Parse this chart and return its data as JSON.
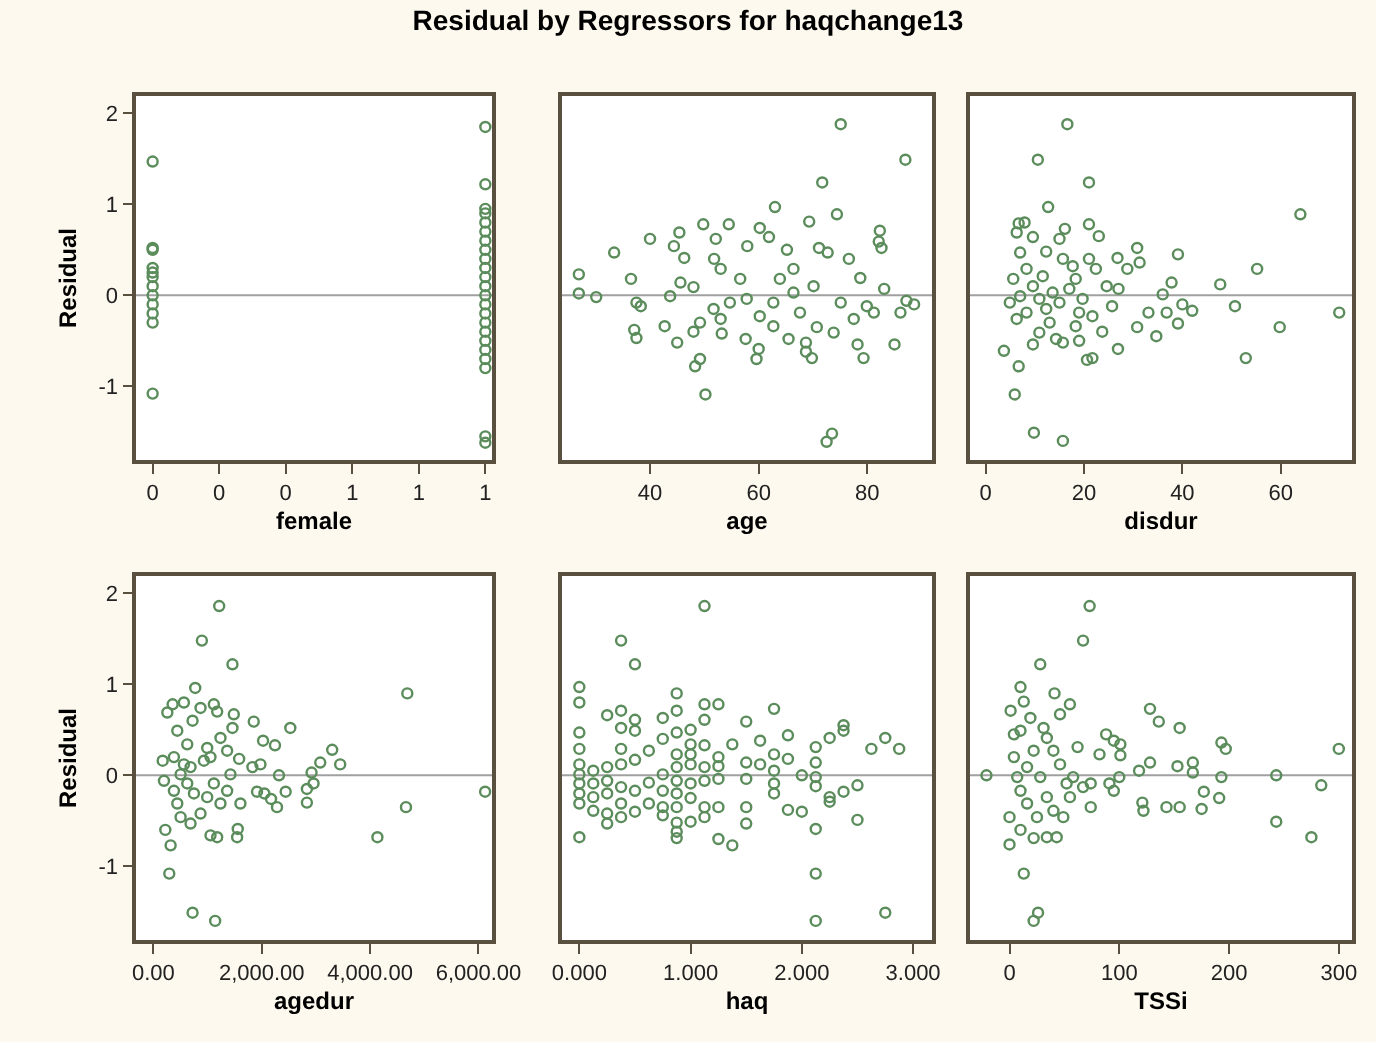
{
  "chart_data": [
    {
      "type": "scatter",
      "title": "Residual by Regressors for haqchange13",
      "xlabel": "female",
      "ylabel": "Residual",
      "color": "#5b8c5b",
      "marker": "circle",
      "grid": false,
      "xlim": [
        -0.05,
        1.02
      ],
      "xticks": [
        0,
        {
          "value": 0.2,
          "label": "0"
        },
        {
          "value": 0.4,
          "label": "0"
        },
        {
          "value": 0.6,
          "label": "1"
        },
        {
          "value": 0.8,
          "label": "1"
        },
        1
      ],
      "ylim": [
        -1.81,
        2.19
      ],
      "yticks": [
        -1,
        0,
        1,
        2
      ],
      "ref_lines": [
        {
          "axis": "y",
          "value": 0,
          "color": "#a0a0a0"
        }
      ],
      "x": [
        0,
        0,
        0,
        0,
        0,
        0,
        0,
        0,
        0,
        0,
        0,
        0,
        1,
        1,
        1,
        1,
        1,
        1,
        1,
        1,
        1,
        1,
        1,
        1,
        1,
        1,
        1,
        1,
        1,
        1,
        1,
        1,
        1,
        1,
        1
      ],
      "values": [
        1.47,
        0.52,
        0.5,
        0.3,
        0.25,
        0.2,
        0.1,
        0,
        -0.1,
        -0.2,
        -0.3,
        -1.08,
        1.85,
        1.22,
        0.95,
        0.9,
        0.8,
        0.7,
        0.6,
        0.5,
        0.4,
        0.3,
        0.2,
        0.1,
        0,
        -0.1,
        -0.2,
        -0.3,
        -0.4,
        -0.5,
        -0.6,
        -0.7,
        -0.8,
        -1.55,
        -1.62
      ]
    },
    {
      "type": "scatter",
      "xlabel": "age",
      "color": "#5b8c5b",
      "marker": "circle",
      "grid": false,
      "tick_labels": "x",
      "xlim": [
        23.8,
        91.9
      ],
      "xticks": [
        40,
        60,
        80
      ],
      "ylim": [
        -1.81,
        2.19
      ],
      "yticks": [
        -1,
        0,
        1,
        2
      ],
      "ref_lines": [
        {
          "axis": "y",
          "value": 0,
          "color": "#a0a0a0"
        }
      ],
      "x": [
        75.1,
        87.0,
        71.7,
        63.0,
        74.4,
        26.9,
        26.9,
        30.1,
        33.4,
        36.5,
        40,
        45.4,
        49.8,
        54.5,
        52.1,
        44.4,
        46.3,
        60.2,
        61.9,
        69.3,
        82.3,
        82.1,
        82.6,
        76.6,
        71.1,
        72.7,
        65.2,
        57.9,
        51.8,
        53.0,
        45.6,
        48.0,
        37.5,
        38.3,
        37.1,
        37.5,
        42.7,
        45.0,
        48.0,
        49.2,
        48.3,
        49.2,
        50.2,
        53.2,
        57.6,
        59.6,
        60.0,
        65.5,
        68.7,
        68.7,
        69.8,
        72.5,
        73.5,
        79.3,
        78.2,
        85.0,
        86.1,
        87.2,
        88.6,
        83.1,
        78.7,
        79.9,
        77.5,
        73.8,
        70.7,
        67.6,
        66.4,
        63.9,
        62.7,
        60.2,
        57.8,
        56.6,
        54.7,
        51.7,
        43.7,
        66.4,
        70.1,
        75.1,
        81.2,
        53.0,
        62.7
      ],
      "values": [
        1.88,
        1.49,
        1.24,
        0.97,
        0.89,
        0.23,
        0.02,
        -0.02,
        0.47,
        0.18,
        0.62,
        0.69,
        0.78,
        0.78,
        0.62,
        0.54,
        0.41,
        0.74,
        0.64,
        0.81,
        0.71,
        0.59,
        0.52,
        0.4,
        0.52,
        0.47,
        0.5,
        0.54,
        0.4,
        0.29,
        0.14,
        0.09,
        -0.08,
        -0.12,
        -0.38,
        -0.47,
        -0.34,
        -0.52,
        -0.4,
        -0.3,
        -0.78,
        -0.7,
        -1.09,
        -0.42,
        -0.48,
        -0.7,
        -0.59,
        -0.48,
        -0.52,
        -0.62,
        -0.69,
        -1.61,
        -1.52,
        -0.69,
        -0.54,
        -0.54,
        -0.19,
        -0.06,
        -0.1,
        0.07,
        0.19,
        -0.12,
        -0.26,
        -0.41,
        -0.35,
        -0.19,
        0.03,
        0.18,
        -0.08,
        -0.23,
        -0.04,
        0.18,
        -0.08,
        -0.15,
        -0.01,
        0.29,
        0.1,
        -0.08,
        -0.19,
        -0.26,
        -0.34
      ]
    },
    {
      "type": "scatter",
      "xlabel": "disdur",
      "color": "#5b8c5b",
      "marker": "circle",
      "grid": false,
      "tick_labels": "x",
      "xlim": [
        -3.2,
        74.5
      ],
      "xticks": [
        0,
        20,
        40,
        60
      ],
      "ylim": [
        -1.81,
        2.19
      ],
      "yticks": [
        -1,
        0,
        1,
        2
      ],
      "ref_lines": [
        {
          "axis": "y",
          "value": 0,
          "color": "#a0a0a0"
        }
      ],
      "x": [
        16.6,
        10.6,
        21.0,
        12.7,
        64.0,
        3.7,
        6.7,
        5.9,
        9.8,
        15.7,
        52.9,
        59.8,
        71.9,
        50.7,
        47.7,
        55.2,
        39.1,
        37.8,
        36.0,
        36.8,
        40.0,
        42.0,
        39.1,
        34.7,
        33.1,
        30.8,
        30.8,
        31.3,
        28.8,
        26.8,
        26.9,
        21.7,
        20.6,
        25.7,
        23.7,
        23.0,
        21.0,
        6.7,
        7.9,
        6.3,
        9.6,
        16.1,
        15.0,
        7.0,
        12.3,
        8.3,
        5.6,
        4.9,
        6.3,
        9.6,
        10.9,
        14.3,
        15.7,
        19.0,
        18.3,
        21.7,
        22.4,
        21.0,
        17.7,
        9.6,
        10.9,
        12.3,
        13.6,
        15.0,
        17.0,
        19.7,
        24.6,
        8.3,
        7.0,
        11.6,
        15.7,
        18.3,
        19.0,
        13.0,
        27.0
      ],
      "values": [
        1.88,
        1.49,
        1.24,
        0.97,
        0.89,
        -0.61,
        -0.78,
        -1.09,
        -1.51,
        -1.6,
        -0.69,
        -0.35,
        -0.19,
        -0.12,
        0.12,
        0.29,
        0.45,
        0.14,
        0.01,
        -0.19,
        -0.1,
        -0.17,
        -0.31,
        -0.45,
        -0.19,
        -0.35,
        0.52,
        0.36,
        0.29,
        0.41,
        -0.59,
        -0.69,
        -0.71,
        -0.12,
        -0.4,
        0.65,
        0.78,
        0.79,
        0.8,
        0.69,
        0.64,
        0.73,
        0.62,
        0.47,
        0.48,
        0.29,
        0.18,
        -0.08,
        -0.26,
        -0.54,
        -0.41,
        -0.48,
        -0.52,
        -0.5,
        -0.34,
        -0.23,
        0.29,
        0.4,
        0.32,
        0.1,
        -0.04,
        -0.15,
        0.03,
        -0.08,
        0.07,
        -0.04,
        0.1,
        -0.19,
        -0.01,
        0.21,
        0.4,
        0.18,
        -0.19,
        -0.3,
        0.07
      ]
    },
    {
      "type": "scatter",
      "xlabel": "agedur",
      "ylabel": "Residual",
      "color": "#5b8c5b",
      "marker": "circle",
      "grid": false,
      "xlim": [
        -320,
        6250
      ],
      "xticks": [
        {
          "value": 0,
          "label": "0.00"
        },
        {
          "value": 2000,
          "label": "2,000.00"
        },
        {
          "value": 4000,
          "label": "4,000.00"
        },
        {
          "value": 6000,
          "label": "6,000.00"
        }
      ],
      "ylim": [
        -1.81,
        2.19
      ],
      "yticks": [
        -1,
        0,
        1,
        2
      ],
      "ref_lines": [
        {
          "axis": "y",
          "value": 0,
          "color": "#a0a0a0"
        }
      ],
      "x": [
        1215,
        896,
        1460,
        773,
        4687,
        6123,
        4663,
        4135,
        3448,
        3301,
        3080,
        2920,
        2834,
        2957,
        2834,
        2528,
        2319,
        2442,
        2245,
        2282,
        2172,
        2025,
        2049,
        1853,
        1914,
        1976,
        1828,
        1485,
        1460,
        1583,
        1558,
        1546,
        1178,
        1055,
        1141,
        724,
        294,
        319,
        221,
        172,
        258,
        356,
        564,
        871,
        1117,
        1178,
        724,
        442,
        626,
        994,
        1239,
        1362,
        196,
        380,
        442,
        503,
        687,
        871,
        994,
        1117,
        1239,
        1362,
        1423,
        503,
        687,
        933,
        626,
        749,
        564,
        380,
        1055,
        1607
      ],
      "values": [
        1.86,
        1.48,
        1.22,
        0.96,
        0.9,
        -0.18,
        -0.35,
        -0.68,
        0.12,
        0.28,
        0.14,
        0.03,
        -0.15,
        -0.09,
        -0.3,
        0.52,
        0.0,
        -0.18,
        0.33,
        -0.35,
        -0.26,
        0.38,
        -0.2,
        0.59,
        -0.18,
        0.12,
        0.09,
        0.67,
        0.52,
        0.18,
        -0.59,
        -0.68,
        -0.68,
        -0.66,
        -1.6,
        -1.51,
        -1.08,
        -0.77,
        -0.6,
        0.16,
        0.69,
        0.78,
        0.8,
        0.74,
        0.78,
        0.7,
        0.6,
        0.49,
        0.34,
        0.3,
        0.41,
        0.27,
        -0.06,
        -0.17,
        -0.31,
        -0.46,
        -0.53,
        -0.42,
        -0.24,
        -0.09,
        -0.31,
        -0.17,
        0.01,
        0.01,
        0.09,
        0.16,
        -0.09,
        -0.2,
        0.12,
        0.2,
        0.2,
        -0.31
      ]
    },
    {
      "type": "scatter",
      "xlabel": "haq",
      "color": "#5b8c5b",
      "marker": "circle",
      "grid": false,
      "tick_labels": "x",
      "xlim": [
        -0.156,
        3.17
      ],
      "xticks": [
        {
          "value": 0,
          "label": "0.000"
        },
        {
          "value": 1,
          "label": "1.000"
        },
        {
          "value": 2,
          "label": "2.000"
        },
        {
          "value": 3,
          "label": "3.000"
        }
      ],
      "ylim": [
        -1.81,
        2.19
      ],
      "yticks": [
        -1,
        0,
        1,
        2
      ],
      "ref_lines": [
        {
          "axis": "y",
          "value": 0,
          "color": "#a0a0a0"
        }
      ],
      "x": [
        1.125,
        0.375,
        0.5,
        0,
        0,
        0,
        0,
        0,
        0,
        0,
        0,
        0,
        0,
        0.125,
        0.125,
        0.125,
        0.125,
        0.25,
        0.25,
        0.25,
        0.25,
        0.25,
        0.25,
        0.375,
        0.375,
        0.375,
        0.375,
        0.375,
        0.375,
        0.375,
        0.5,
        0.5,
        0.5,
        0.5,
        0.5,
        0.625,
        0.625,
        0.625,
        0.75,
        0.75,
        0.75,
        0.75,
        0.75,
        0.75,
        0.875,
        0.875,
        0.875,
        0.875,
        0.875,
        0.875,
        0.875,
        0.875,
        0.875,
        0.875,
        0.875,
        1,
        1,
        1,
        1,
        1,
        1,
        1,
        1.125,
        1.125,
        1.125,
        1.125,
        1.125,
        1.125,
        1.125,
        1.25,
        1.25,
        1.25,
        1.25,
        1.25,
        1.25,
        1.375,
        1.375,
        1.5,
        1.5,
        1.5,
        1.5,
        1.5,
        1.625,
        1.625,
        1.75,
        1.75,
        1.75,
        1.75,
        1.75,
        1.875,
        1.875,
        1.875,
        2,
        2,
        2.125,
        2.125,
        2.125,
        2.125,
        2.125,
        2.125,
        2.125,
        2.25,
        2.25,
        2.25,
        2.375,
        2.375,
        2.375,
        2.5,
        2.5,
        2.625,
        2.75,
        2.75,
        2.875
      ],
      "values": [
        1.86,
        1.48,
        1.22,
        0.97,
        0.8,
        0.47,
        0.29,
        0.12,
        0.01,
        -0.09,
        -0.2,
        -0.31,
        -0.68,
        0.05,
        -0.09,
        -0.24,
        -0.39,
        0.66,
        0.09,
        -0.06,
        -0.2,
        -0.42,
        -0.53,
        0.71,
        0.52,
        0.29,
        0.12,
        -0.13,
        -0.31,
        -0.46,
        0.61,
        0.49,
        0.17,
        -0.17,
        -0.4,
        0.27,
        -0.08,
        -0.31,
        0.63,
        0.4,
        0.01,
        -0.17,
        -0.35,
        -0.44,
        0.9,
        0.71,
        0.47,
        0.23,
        0.09,
        -0.06,
        -0.2,
        -0.35,
        -0.52,
        -0.62,
        -0.69,
        0.5,
        0.34,
        0.23,
        0.12,
        -0.09,
        -0.25,
        -0.51,
        0.78,
        0.61,
        0.33,
        0.09,
        -0.06,
        -0.35,
        -0.46,
        0.78,
        0.2,
        0.1,
        -0.04,
        -0.35,
        -0.7,
        0.34,
        -0.77,
        0.59,
        0.14,
        -0.04,
        -0.35,
        -0.53,
        0.38,
        0.12,
        0.73,
        0.23,
        0.05,
        -0.09,
        -0.2,
        0.44,
        0.18,
        -0.38,
        0.0,
        -0.4,
        0.31,
        0.14,
        -0.02,
        -0.12,
        -0.59,
        -1.08,
        -1.6,
        0.41,
        -0.24,
        -0.29,
        0.55,
        0.49,
        -0.18,
        -0.11,
        -0.49,
        0.29,
        0.41,
        -1.51,
        0.29
      ]
    },
    {
      "type": "scatter",
      "xlabel": "TSSi",
      "color": "#5b8c5b",
      "marker": "circle",
      "grid": false,
      "tick_labels": "x",
      "xlim": [
        -36,
        312
      ],
      "xticks": [
        0,
        100,
        200,
        300
      ],
      "ylim": [
        -1.81,
        2.19
      ],
      "yticks": [
        -1,
        0,
        1,
        2
      ],
      "ref_lines": [
        {
          "axis": "y",
          "value": 0,
          "color": "#a0a0a0"
        }
      ],
      "x": [
        73,
        67,
        28,
        10,
        41,
        128,
        136,
        155,
        193,
        197,
        300,
        284,
        243,
        243,
        275,
        193,
        191,
        175,
        177,
        167,
        167,
        153,
        155,
        143,
        122,
        121,
        128,
        118,
        101,
        95,
        88,
        101,
        100,
        95,
        91,
        74,
        74,
        62,
        55,
        46,
        31,
        13,
        1,
        4,
        0,
        0,
        13,
        22,
        26,
        22,
        34,
        43,
        10,
        -21,
        4,
        7,
        10,
        16,
        16,
        22,
        28,
        34,
        40,
        49,
        55,
        58,
        46,
        52,
        67,
        82,
        10,
        34,
        40,
        19,
        25
      ],
      "values": [
        1.86,
        1.48,
        1.22,
        0.97,
        0.9,
        0.73,
        0.59,
        0.52,
        0.36,
        0.29,
        0.29,
        -0.11,
        0.0,
        -0.51,
        -0.68,
        -0.02,
        -0.25,
        -0.37,
        -0.18,
        0.14,
        0.03,
        0.1,
        -0.35,
        -0.35,
        -0.39,
        -0.3,
        0.14,
        0.05,
        0.34,
        0.38,
        0.45,
        0.22,
        -0.02,
        -0.17,
        -0.09,
        -0.35,
        -0.09,
        0.31,
        0.78,
        0.67,
        0.52,
        0.81,
        0.71,
        0.45,
        -0.46,
        -0.76,
        -1.08,
        -1.6,
        -1.51,
        -0.69,
        -0.68,
        -0.68,
        -0.6,
        0.0,
        0.2,
        -0.02,
        -0.17,
        -0.31,
        0.09,
        0.27,
        -0.02,
        -0.24,
        -0.39,
        -0.46,
        -0.24,
        -0.02,
        0.12,
        -0.09,
        -0.13,
        0.23,
        0.49,
        0.41,
        0.27,
        0.63,
        -0.46
      ]
    }
  ]
}
